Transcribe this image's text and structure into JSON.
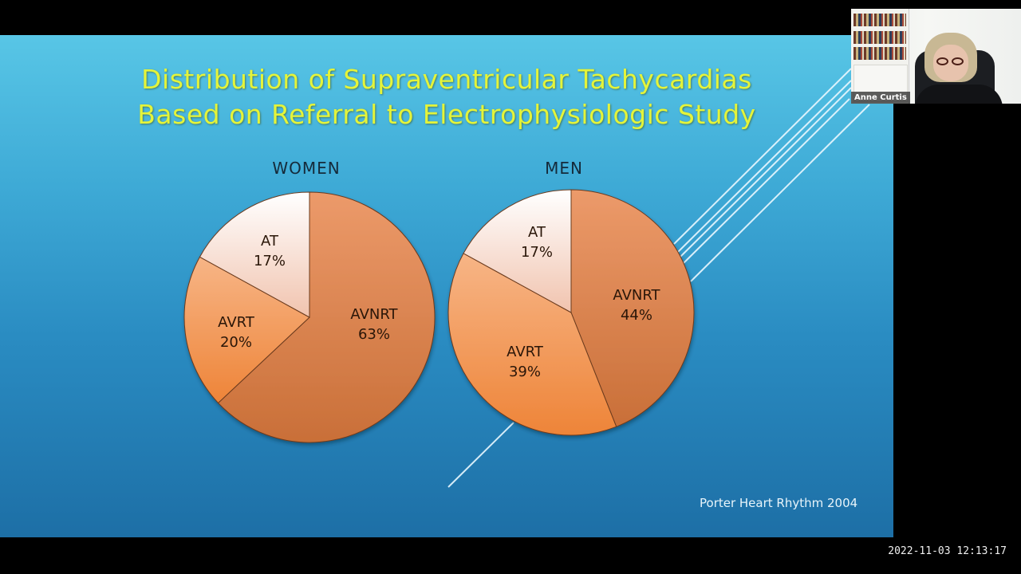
{
  "slide": {
    "title_line1": "Distribution of Supraventricular Tachycardias",
    "title_line2": "Based on Referral to Electrophysiologic Study",
    "citation": "Porter Heart Rhythm 2004"
  },
  "video_call": {
    "participant_name": "Anne Curtis",
    "timestamp": "2022-11-03  12:13:17"
  },
  "colors": {
    "background_top": "#58c6e6",
    "background_bottom": "#1d6fa6",
    "title": "#e4f43a",
    "avnrt": "#d9824f",
    "avrt": "#f4a66c",
    "at": "#fbefe8"
  },
  "chart_data": [
    {
      "type": "pie",
      "title": "WOMEN",
      "categories": [
        "AVNRT",
        "AVRT",
        "AT"
      ],
      "values": [
        63,
        20,
        17
      ],
      "labels": [
        "63%",
        "20%",
        "17%"
      ],
      "start_angle_deg": 0,
      "direction": "clockwise"
    },
    {
      "type": "pie",
      "title": "MEN",
      "categories": [
        "AVNRT",
        "AVRT",
        "AT"
      ],
      "values": [
        44,
        39,
        17
      ],
      "labels": [
        "44%",
        "39%",
        "17%"
      ],
      "start_angle_deg": 0,
      "direction": "clockwise"
    }
  ]
}
